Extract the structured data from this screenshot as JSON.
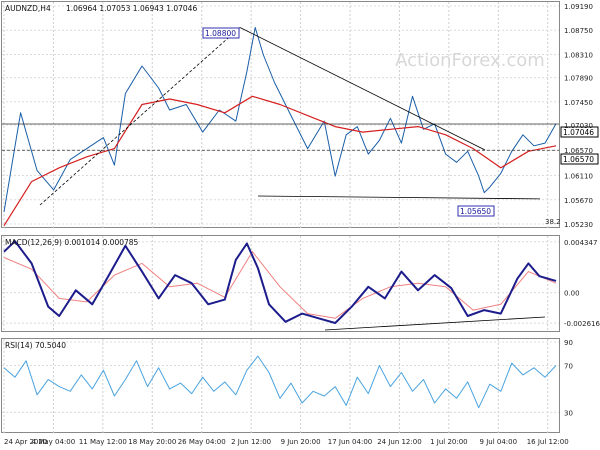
{
  "colors": {
    "price": "#1a5ea8",
    "ma": "#d62020",
    "macd": "#1c1c8c",
    "signal": "#f08080",
    "rsi": "#4aa3df",
    "trend": "#000000"
  },
  "chart_data": [
    {
      "type": "line",
      "title": "AUDNZD,H4",
      "ohlc_label": "1.06964 1.07053 1.06943 1.07046",
      "ylim": [
        1.0523,
        1.0919
      ],
      "y_ticks": [
        1.0919,
        1.0875,
        1.0831,
        1.0789,
        1.0745,
        1.0703,
        1.0657,
        1.0611,
        1.0567,
        1.0523
      ],
      "y_tick_labels": [
        "1.09190",
        "1.08750",
        "1.08310",
        "1.07890",
        "1.07450",
        "1.07030",
        "1.06570",
        "1.06110",
        "1.05670",
        "1.05230"
      ],
      "x_tick_labels": [
        "24 Apr 2020",
        "4 May 04:00",
        "11 May 12:00",
        "18 May 20:00",
        "26 May 04:00",
        "2 Jun 12:00",
        "9 Jun 20:00",
        "17 Jun 04:00",
        "24 Jun 12:00",
        "1 Jul 20:00",
        "9 Jul 04:00",
        "16 Jul 12:00"
      ],
      "last_price": 1.07046,
      "last_price_label": "1.07046",
      "level": 1.0657,
      "level_label": "1.06570",
      "high_label": "1.08800",
      "high_value": 1.088,
      "low_label": "1.05650",
      "low_value": 1.0565,
      "fib_label": "38.2",
      "series": [
        {
          "name": "price",
          "x": [
            0,
            0.03,
            0.06,
            0.09,
            0.12,
            0.15,
            0.18,
            0.2,
            0.22,
            0.25,
            0.28,
            0.3,
            0.33,
            0.36,
            0.39,
            0.42,
            0.44,
            0.455,
            0.47,
            0.49,
            0.52,
            0.55,
            0.58,
            0.6,
            0.62,
            0.64,
            0.66,
            0.68,
            0.7,
            0.72,
            0.74,
            0.76,
            0.78,
            0.8,
            0.82,
            0.84,
            0.86,
            0.87,
            0.88,
            0.9,
            0.92,
            0.94,
            0.96,
            0.98,
            1.0
          ],
          "values": [
            1.0545,
            1.0725,
            1.062,
            1.0585,
            1.064,
            1.066,
            1.068,
            1.063,
            1.076,
            1.081,
            1.077,
            1.073,
            1.074,
            1.069,
            1.073,
            1.071,
            1.08,
            1.088,
            1.083,
            1.078,
            1.072,
            1.066,
            1.071,
            1.061,
            1.0685,
            1.07,
            1.065,
            1.0675,
            1.0715,
            1.067,
            1.0755,
            1.0695,
            1.0705,
            1.065,
            1.0635,
            1.0655,
            1.061,
            1.058,
            1.059,
            1.0615,
            1.0655,
            1.0685,
            1.0665,
            1.067,
            1.0705
          ]
        },
        {
          "name": "ma",
          "x": [
            0,
            0.05,
            0.1,
            0.15,
            0.2,
            0.25,
            0.3,
            0.35,
            0.4,
            0.45,
            0.5,
            0.55,
            0.6,
            0.65,
            0.7,
            0.75,
            0.8,
            0.85,
            0.9,
            0.95,
            1.0
          ],
          "values": [
            1.052,
            1.06,
            1.0625,
            1.0645,
            1.066,
            1.074,
            1.075,
            1.074,
            1.0725,
            1.0755,
            1.074,
            1.072,
            1.07,
            1.069,
            1.0695,
            1.07,
            1.0685,
            1.066,
            1.0625,
            1.0655,
            1.0665
          ]
        }
      ]
    },
    {
      "type": "line",
      "title": "MACD(12,26,9) 0.001014 0.000785",
      "ylim": [
        -0.0032,
        0.0045
      ],
      "y_ticks": [
        0.004347,
        0.0,
        -0.002616
      ],
      "y_tick_labels": [
        "0.004347",
        "0.00",
        "-0.002616"
      ],
      "value_label": "0.00",
      "series": [
        {
          "name": "macd",
          "x": [
            0,
            0.02,
            0.05,
            0.08,
            0.1,
            0.13,
            0.16,
            0.19,
            0.22,
            0.25,
            0.28,
            0.31,
            0.34,
            0.37,
            0.4,
            0.42,
            0.44,
            0.46,
            0.48,
            0.51,
            0.54,
            0.57,
            0.6,
            0.63,
            0.66,
            0.69,
            0.72,
            0.75,
            0.78,
            0.81,
            0.84,
            0.87,
            0.9,
            0.93,
            0.95,
            0.97,
            1.0
          ],
          "values": [
            0.0035,
            0.0044,
            0.0025,
            -0.0012,
            -0.002,
            0.0002,
            -0.001,
            0.0015,
            0.004,
            0.0018,
            -0.0005,
            0.0015,
            0.0008,
            -0.001,
            -0.0006,
            0.0028,
            0.0042,
            0.0021,
            -0.001,
            -0.0025,
            -0.0018,
            -0.0022,
            -0.0026,
            -0.0012,
            0.0005,
            -0.0005,
            0.0018,
            0.0002,
            0.0015,
            0.0004,
            -0.002,
            -0.0015,
            -0.0018,
            0.0012,
            0.0025,
            0.0014,
            0.001
          ]
        },
        {
          "name": "signal",
          "x": [
            0,
            0.05,
            0.1,
            0.15,
            0.2,
            0.25,
            0.3,
            0.35,
            0.4,
            0.45,
            0.5,
            0.55,
            0.6,
            0.65,
            0.7,
            0.75,
            0.8,
            0.85,
            0.9,
            0.95,
            1.0
          ],
          "values": [
            0.003,
            0.002,
            -0.0005,
            -0.0008,
            0.0015,
            0.0025,
            0.0005,
            0.0008,
            -0.0004,
            0.0035,
            0.0005,
            -0.0018,
            -0.0022,
            -0.0005,
            0.0005,
            0.0008,
            0.0005,
            -0.0015,
            -0.001,
            0.0018,
            0.0008
          ]
        }
      ]
    },
    {
      "type": "line",
      "title": "RSI(14) 70.5040",
      "ylim": [
        15,
        90
      ],
      "y_ticks": [
        90,
        70,
        30
      ],
      "y_tick_labels": [
        "90",
        "70",
        "30"
      ],
      "series": [
        {
          "name": "rsi",
          "x": [
            0,
            0.02,
            0.04,
            0.06,
            0.08,
            0.1,
            0.12,
            0.14,
            0.16,
            0.18,
            0.2,
            0.22,
            0.24,
            0.26,
            0.28,
            0.3,
            0.32,
            0.34,
            0.36,
            0.38,
            0.4,
            0.42,
            0.44,
            0.46,
            0.48,
            0.5,
            0.52,
            0.54,
            0.56,
            0.58,
            0.6,
            0.62,
            0.64,
            0.66,
            0.68,
            0.7,
            0.72,
            0.74,
            0.76,
            0.78,
            0.8,
            0.82,
            0.84,
            0.86,
            0.88,
            0.9,
            0.92,
            0.94,
            0.96,
            0.98,
            1.0
          ],
          "values": [
            68,
            60,
            74,
            45,
            58,
            52,
            48,
            62,
            50,
            66,
            44,
            58,
            74,
            52,
            68,
            50,
            55,
            46,
            60,
            48,
            56,
            45,
            66,
            78,
            64,
            42,
            55,
            38,
            48,
            44,
            52,
            36,
            60,
            46,
            70,
            52,
            64,
            48,
            58,
            38,
            50,
            42,
            56,
            34,
            54,
            48,
            72,
            62,
            68,
            60,
            70
          ]
        }
      ]
    }
  ],
  "watermark": "ActionForex.com"
}
